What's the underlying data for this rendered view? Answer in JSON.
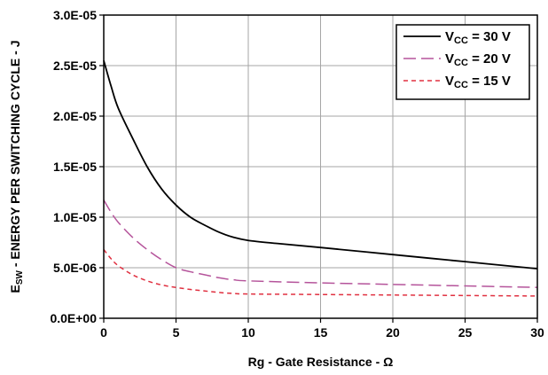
{
  "chart_data": {
    "type": "line",
    "title": "",
    "xlabel": "Rg - Gate Resistance - Ω",
    "ylabel_main": "E",
    "ylabel_sub": "SW",
    "ylabel_rest": " - ENERGY PER SWITCHING CYCLE - J",
    "xlim": [
      0,
      30
    ],
    "ylim": [
      0,
      3e-05
    ],
    "x_ticks": [
      0,
      5,
      10,
      15,
      20,
      25,
      30
    ],
    "x_tick_labels": [
      "0",
      "5",
      "10",
      "15",
      "20",
      "25",
      "30"
    ],
    "y_ticks": [
      0,
      5e-06,
      1e-05,
      1.5e-05,
      2e-05,
      2.5e-05,
      3e-05
    ],
    "y_tick_labels": [
      "0.0E+00",
      "5.0E-06",
      "1.0E-05",
      "1.5E-05",
      "2.0E-05",
      "2.5E-05",
      "3.0E-05"
    ],
    "grid": true,
    "legend_position": "top-right",
    "series": [
      {
        "key": "vcc30",
        "legend_main": "V",
        "legend_sub": "CC",
        "legend_rest": " = 30 V",
        "color": "#000000",
        "dash": "solid",
        "x": [
          0,
          0.5,
          1,
          2,
          3,
          4,
          5,
          6,
          7,
          8,
          9,
          10,
          12,
          15,
          20,
          25,
          30
        ],
        "y": [
          2.55e-05,
          2.3e-05,
          2.08e-05,
          1.78e-05,
          1.5e-05,
          1.28e-05,
          1.12e-05,
          1e-05,
          9.2e-06,
          8.5e-06,
          8e-06,
          7.7e-06,
          7.4e-06,
          7e-06,
          6.3e-06,
          5.6e-06,
          4.9e-06
        ]
      },
      {
        "key": "vcc20",
        "legend_main": "V",
        "legend_sub": "CC",
        "legend_rest": " = 20 V",
        "color": "#b5549b",
        "dash": "long-dash",
        "x": [
          0,
          0.5,
          1,
          2,
          3,
          4,
          5,
          6,
          7,
          8,
          9,
          10,
          15,
          20,
          25,
          30
        ],
        "y": [
          1.17e-05,
          1.05e-05,
          9.5e-06,
          8e-06,
          6.8e-06,
          5.8e-06,
          5e-06,
          4.6e-06,
          4.3e-06,
          4e-06,
          3.8e-06,
          3.7e-06,
          3.5e-06,
          3.35e-06,
          3.2e-06,
          3.05e-06
        ]
      },
      {
        "key": "vcc15",
        "legend_main": "V",
        "legend_sub": "CC",
        "legend_rest": " = 15 V",
        "color": "#e03040",
        "dash": "short-dash",
        "x": [
          0,
          0.5,
          1,
          2,
          3,
          4,
          5,
          6,
          7,
          8,
          9,
          10,
          15,
          20,
          25,
          30
        ],
        "y": [
          6.8e-06,
          5.9e-06,
          5.2e-06,
          4.3e-06,
          3.7e-06,
          3.3e-06,
          3.05e-06,
          2.85e-06,
          2.7e-06,
          2.55e-06,
          2.45e-06,
          2.4e-06,
          2.35e-06,
          2.3e-06,
          2.25e-06,
          2.2e-06
        ]
      }
    ]
  }
}
